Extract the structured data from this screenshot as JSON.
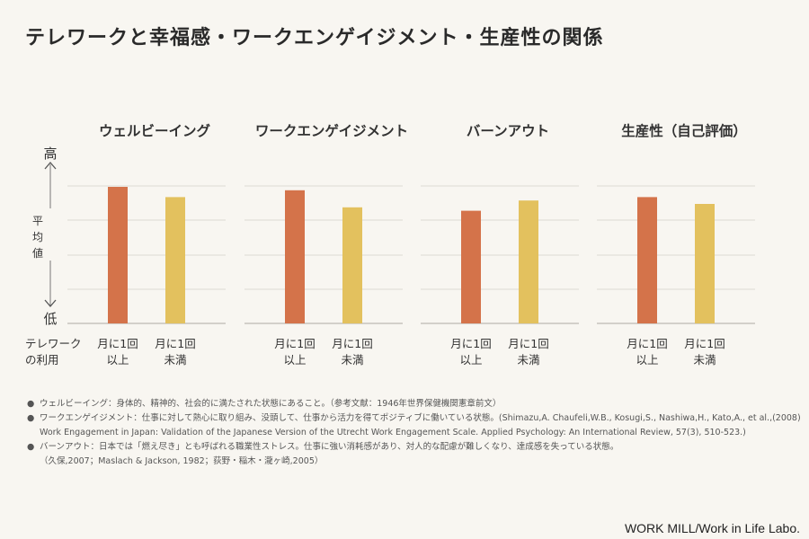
{
  "title": "テレワークと幸福感・ワークエンゲイジメント・生産性の関係",
  "chart_data": {
    "type": "bar",
    "y_axis": {
      "top": "高",
      "middle": "平均値",
      "bottom": "低"
    },
    "group_axis_label": [
      "テレワーク",
      "の利用"
    ],
    "categories": [
      {
        "line1": "月に1回",
        "line2": "以上"
      },
      {
        "line1": "月に1回",
        "line2": "未満"
      }
    ],
    "panels": [
      {
        "title": "ウェルビーイング",
        "values": [
          0.8,
          0.74
        ]
      },
      {
        "title": "ワークエンゲイジメント",
        "values": [
          0.78,
          0.68
        ]
      },
      {
        "title": "バーンアウト",
        "values": [
          0.66,
          0.72
        ]
      },
      {
        "title": "生産性（自己評価）",
        "values": [
          0.74,
          0.7
        ]
      }
    ],
    "value_note": "relative level between 低 (0) and 高 (1)",
    "colors": {
      "series_1": "#d4734a",
      "series_2": "#e3c15e",
      "grid": "#dcdad4",
      "axis": "#bdbab2"
    },
    "grid": true
  },
  "notes": [
    {
      "bullet": "●",
      "lines": [
        "ウェルビーイング：身体的、精神的、社会的に満たされた状態にあること。（参考文献：1946年世界保健機関憲章前文）"
      ]
    },
    {
      "bullet": "●",
      "lines": [
        "ワークエンゲイジメント：仕事に対して熱心に取り組み、没頭して、仕事から活力を得てポジティブに働いている状態。(Shimazu,A. Chaufeli,W.B., Kosugi,S., Nashiwa,H., Kato,A., et al.,(2008)",
        "Work Engagement in Japan: Validation of the Japanese Version of the Utrecht Work Engagement Scale. Applied Psychology: An International Review, 57(3), 510-523.)"
      ]
    },
    {
      "bullet": "●",
      "lines": [
        "バーンアウト：日本では「燃え尽き」とも呼ばれる職業性ストレス。仕事に強い消耗感があり、対人的な配慮が難しくなり、達成感を失っている状態。",
        "（久保,2007；Maslach & Jackson, 1982；荻野・稲木・瀧ヶ崎,2005）"
      ]
    }
  ],
  "credit": "WORK MILL/Work in Life Labo."
}
